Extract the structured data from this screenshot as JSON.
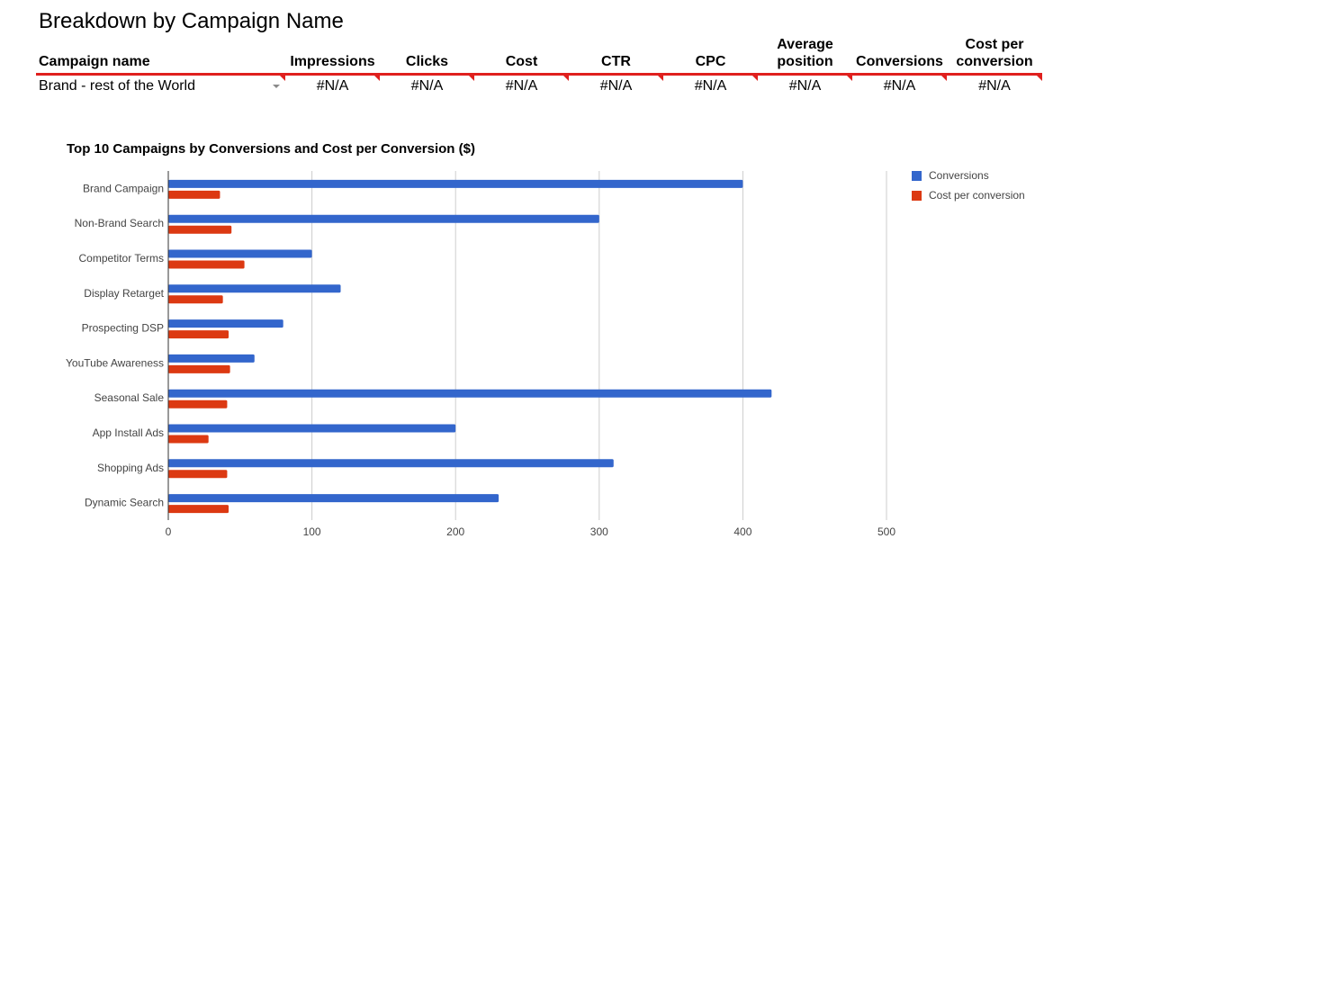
{
  "sheet": {
    "title": "Breakdown by Campaign Name",
    "table": {
      "headers": [
        "Campaign name",
        "Impressions",
        "Clicks",
        "Cost",
        "CTR",
        "CPC",
        "Average position",
        "Conversions",
        "Cost per conversion"
      ],
      "row": {
        "campaign": "Brand - rest of the World",
        "values": [
          "#N/A",
          "#N/A",
          "#N/A",
          "#N/A",
          "#N/A",
          "#N/A",
          "#N/A",
          "#N/A"
        ]
      }
    }
  },
  "chart_data": {
    "type": "bar",
    "orientation": "horizontal",
    "title": "Top 10 Campaigns by Conversions and Cost per Conversion ($)",
    "categories": [
      "Brand Campaign",
      "Non-Brand Search",
      "Competitor Terms",
      "Display Retarget",
      "Prospecting DSP",
      "YouTube Awareness",
      "Seasonal Sale",
      "App Install Ads",
      "Shopping Ads",
      "Dynamic Search"
    ],
    "series": [
      {
        "name": "Conversions",
        "color": "#3366cc",
        "values": [
          400,
          300,
          100,
          120,
          80,
          60,
          420,
          200,
          310,
          230
        ]
      },
      {
        "name": "Cost per conversion",
        "color": "#dc3912",
        "values": [
          36,
          44,
          53,
          38,
          42,
          43,
          41,
          28,
          41,
          42
        ]
      }
    ],
    "xlim": [
      0,
      500
    ],
    "xticks": [
      0,
      100,
      200,
      300,
      400,
      500
    ],
    "xlabel": "",
    "ylabel": "",
    "grid": true,
    "legend": "right"
  }
}
